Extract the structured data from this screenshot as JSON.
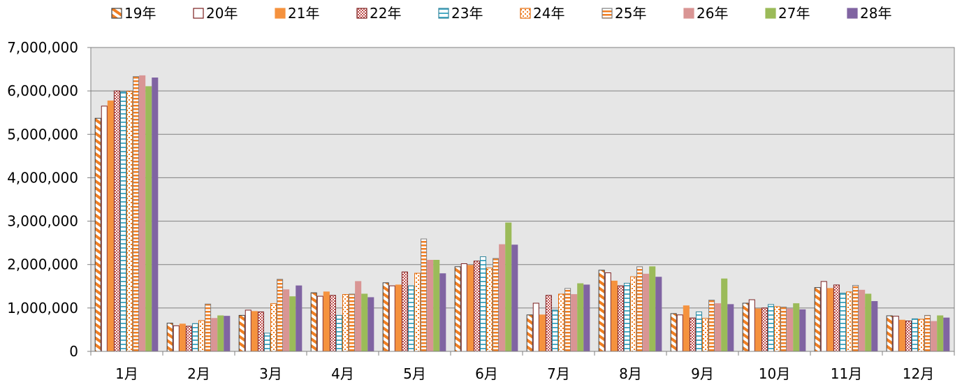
{
  "chart_data": {
    "type": "bar",
    "categories": [
      "1月",
      "2月",
      "3月",
      "4月",
      "5月",
      "6月",
      "7月",
      "8月",
      "9月",
      "10月",
      "11月",
      "12月"
    ],
    "ylim": [
      0,
      7000000
    ],
    "yticks": [
      0,
      1000000,
      2000000,
      3000000,
      4000000,
      5000000,
      6000000,
      7000000
    ],
    "ytick_labels": [
      "0",
      "1,000,000",
      "2,000,000",
      "3,000,000",
      "4,000,000",
      "5,000,000",
      "6,000,000",
      "7,000,000"
    ],
    "grid": true,
    "legend": "top",
    "plot_background": "#e6e6e6",
    "series": [
      {
        "name": "19年",
        "pattern": "diag",
        "color": "#f07e22",
        "values": [
          5370000,
          650000,
          830000,
          1350000,
          1580000,
          1950000,
          840000,
          1870000,
          870000,
          1110000,
          1470000,
          820000
        ]
      },
      {
        "name": "20年",
        "pattern": "outline",
        "color": "#7b1f1f",
        "values": [
          5650000,
          590000,
          950000,
          1270000,
          1510000,
          2020000,
          1110000,
          1810000,
          840000,
          1190000,
          1610000,
          810000
        ]
      },
      {
        "name": "21年",
        "pattern": "solid",
        "color": "#f5923e",
        "values": [
          5770000,
          630000,
          920000,
          1370000,
          1530000,
          1980000,
          840000,
          1620000,
          1050000,
          980000,
          1450000,
          720000
        ]
      },
      {
        "name": "22年",
        "pattern": "checker",
        "color": "#c0504d",
        "values": [
          6000000,
          580000,
          910000,
          1290000,
          1830000,
          2080000,
          1290000,
          1510000,
          770000,
          1000000,
          1530000,
          700000
        ]
      },
      {
        "name": "23年",
        "pattern": "hstripe-blue",
        "color": "#4bacc6",
        "values": [
          5980000,
          640000,
          420000,
          830000,
          1510000,
          2180000,
          950000,
          1570000,
          910000,
          1080000,
          1340000,
          750000
        ]
      },
      {
        "name": "24年",
        "pattern": "dots",
        "color": "#f07e22",
        "values": [
          5990000,
          710000,
          1100000,
          1310000,
          1800000,
          1920000,
          1320000,
          1720000,
          760000,
          1030000,
          1370000,
          740000
        ]
      },
      {
        "name": "25年",
        "pattern": "hstripe",
        "color": "#f07e22",
        "values": [
          6330000,
          1090000,
          1660000,
          1320000,
          2590000,
          2140000,
          1450000,
          1950000,
          1180000,
          1020000,
          1520000,
          830000
        ]
      },
      {
        "name": "26年",
        "pattern": "solid",
        "color": "#d99594",
        "values": [
          6350000,
          760000,
          1420000,
          1610000,
          2100000,
          2460000,
          1310000,
          1780000,
          1100000,
          980000,
          1410000,
          690000
        ]
      },
      {
        "name": "27年",
        "pattern": "solid",
        "color": "#9bbb59",
        "values": [
          6100000,
          820000,
          1260000,
          1320000,
          2100000,
          2960000,
          1560000,
          1950000,
          1670000,
          1100000,
          1320000,
          820000
        ]
      },
      {
        "name": "28年",
        "pattern": "solid",
        "color": "#8064a2",
        "values": [
          6300000,
          810000,
          1510000,
          1240000,
          1790000,
          2450000,
          1530000,
          1710000,
          1080000,
          960000,
          1150000,
          770000
        ]
      }
    ]
  }
}
